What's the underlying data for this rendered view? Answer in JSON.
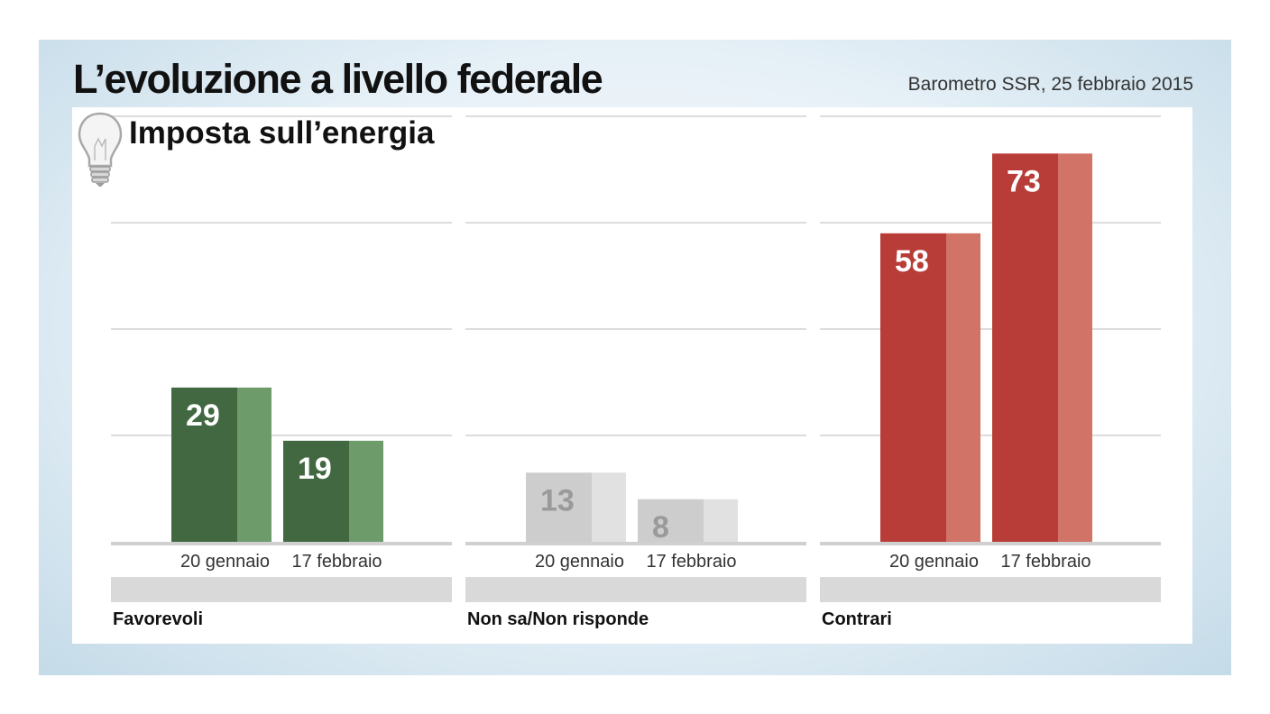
{
  "header": {
    "title": "L’evoluzione a livello federale",
    "source": "Barometro SSR, 25 febbraio 2015"
  },
  "chart_data": {
    "type": "bar",
    "subtitle": "Imposta sull’energia",
    "ylim": [
      0,
      80
    ],
    "grid": true,
    "groups": [
      {
        "name": "Favorevoli",
        "categories": [
          "20 gennaio",
          "17 febbraio"
        ],
        "values": [
          29,
          19
        ],
        "dark": "#416840",
        "light": "#6e9b6a",
        "label_color": "#ffffff"
      },
      {
        "name": "Non sa/Non risponde",
        "categories": [
          "20 gennaio",
          "17 febbraio"
        ],
        "values": [
          13,
          8
        ],
        "dark": "#cdcdcd",
        "light": "#e1e1e1",
        "label_color": "#9a9a9a"
      },
      {
        "name": "Contrari",
        "categories": [
          "20 gennaio",
          "17 febbraio"
        ],
        "values": [
          58,
          73
        ],
        "dark": "#b83d38",
        "light": "#d27367",
        "label_color": "#ffffff"
      }
    ]
  },
  "icon": "light-bulb-icon"
}
